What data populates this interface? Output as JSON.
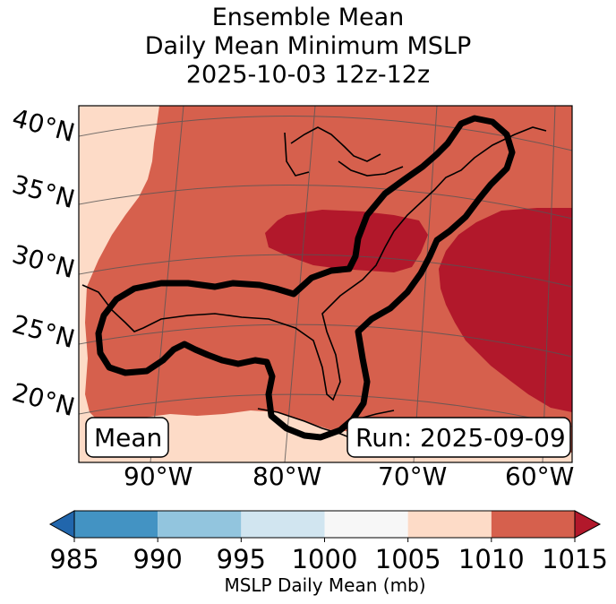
{
  "title": {
    "line1": "Ensemble Mean",
    "line2": "Daily Mean Minimum MSLP",
    "line3": "2025-10-03 12z-12z"
  },
  "map": {
    "lat_labels": [
      "40°N",
      "35°N",
      "30°N",
      "25°N",
      "20°N"
    ],
    "lon_labels": [
      "90°W",
      "80°W",
      "70°W",
      "60°W"
    ],
    "left_box": "Mean",
    "right_box": "Run: 2025-09-09"
  },
  "colorbar": {
    "ticks": [
      "985",
      "990",
      "995",
      "1000",
      "1005",
      "1010",
      "1015"
    ],
    "label": "MSLP Daily Mean (mb)",
    "colors": [
      "#4393c3",
      "#92c5de",
      "#d1e5f0",
      "#f7f7f7",
      "#fddbc7",
      "#d6604d",
      "#b2182b"
    ],
    "under_color": "#2166ac",
    "over_color": "#b2182b"
  }
}
